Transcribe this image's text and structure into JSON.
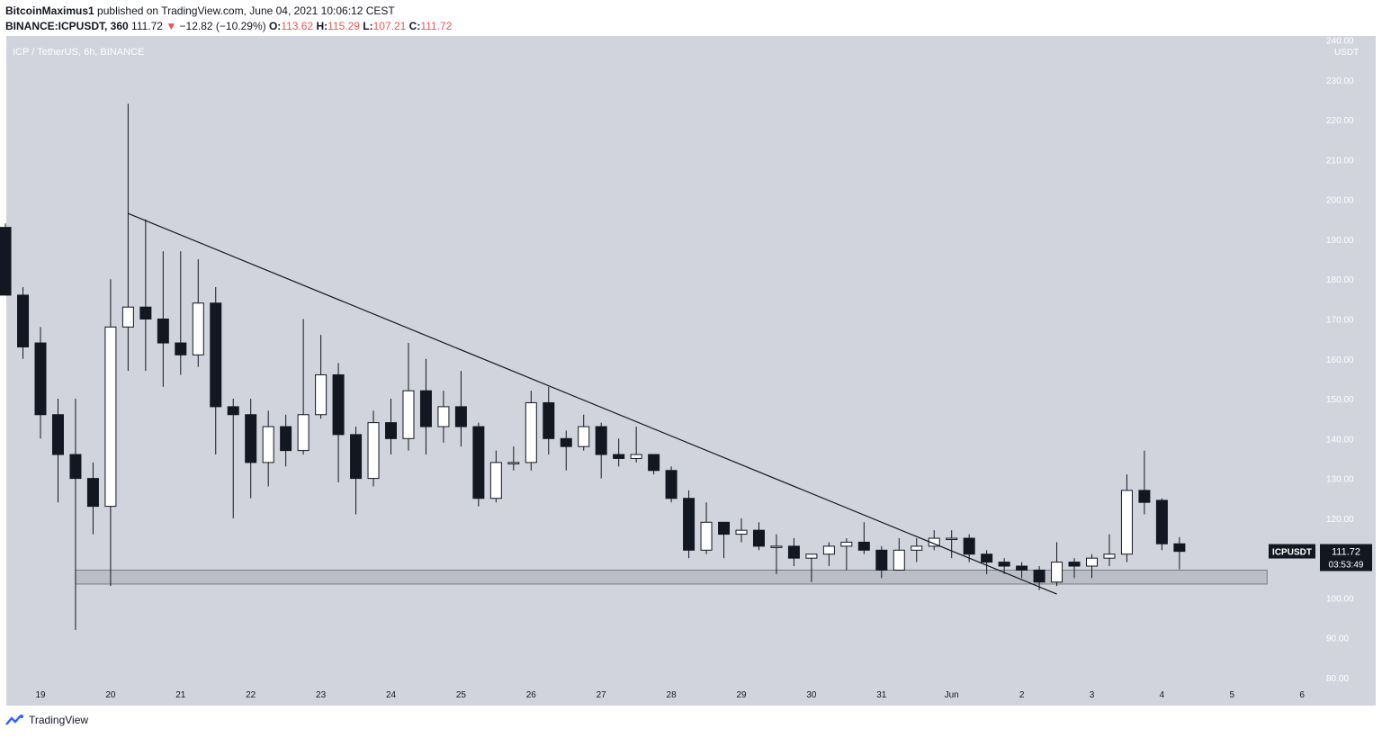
{
  "header": {
    "author": "BitcoinMaximus1",
    "published_text": "published on TradingView.com, June 04, 2021 10:06:12 CEST",
    "symbol_line": "BINANCE:ICPUSDT, 360",
    "last": "111.72",
    "change_arrow": "▼",
    "change": "−12.82 (−10.29%)",
    "o_label": "O:",
    "o_value": "113.62",
    "h_label": "H:",
    "h_value": "115.29",
    "l_label": "L:",
    "l_value": "107.21",
    "c_label": "C:",
    "c_value": "111.72"
  },
  "pane_title": "ICP / TetherUS, 6h, BINANCE",
  "currency_label": "USDT",
  "price_tag": {
    "symbol": "ICPUSDT",
    "price": "111.72",
    "countdown": "03:53:49"
  },
  "footer": {
    "brand": "TradingView"
  },
  "colors": {
    "background": "#d1d4dc",
    "bull_fill": "#ffffff",
    "bear_fill": "#131722",
    "wick": "#131722",
    "zone": "#b2b5be"
  },
  "chart_data": {
    "type": "candlestick",
    "title": "ICP / TetherUS, 6h, BINANCE",
    "y_unit": "USDT",
    "ylim": [
      78,
      242
    ],
    "y_ticks": [
      "80.00",
      "90.00",
      "100.00",
      "110.00",
      "120.00",
      "130.00",
      "140.00",
      "150.00",
      "160.00",
      "170.00",
      "180.00",
      "190.00",
      "200.00",
      "210.00",
      "220.00",
      "230.00",
      "240.00"
    ],
    "x_ticks": [
      "19",
      "20",
      "21",
      "22",
      "23",
      "24",
      "25",
      "26",
      "27",
      "28",
      "29",
      "30",
      "31",
      "Jun",
      "2",
      "3",
      "4",
      "5",
      "6"
    ],
    "x_tick_positions": [
      19,
      20,
      21,
      22,
      23,
      24,
      25,
      26,
      27,
      28,
      29,
      30,
      31,
      32,
      33,
      34,
      35,
      36,
      37
    ],
    "candles": [
      {
        "t": 18.5,
        "o": 193,
        "h": 194,
        "l": 176,
        "c": 176
      },
      {
        "t": 18.75,
        "o": 176,
        "h": 178,
        "l": 160,
        "c": 163
      },
      {
        "t": 19.0,
        "o": 164,
        "h": 168,
        "l": 140,
        "c": 146
      },
      {
        "t": 19.25,
        "o": 146,
        "h": 150,
        "l": 124,
        "c": 136
      },
      {
        "t": 19.5,
        "o": 136,
        "h": 150,
        "l": 92,
        "c": 130
      },
      {
        "t": 19.75,
        "o": 130,
        "h": 134,
        "l": 116,
        "c": 123
      },
      {
        "t": 20.0,
        "o": 123,
        "h": 180,
        "l": 103,
        "c": 168
      },
      {
        "t": 20.25,
        "o": 168,
        "h": 224,
        "l": 157,
        "c": 173
      },
      {
        "t": 20.5,
        "o": 173,
        "h": 195,
        "l": 157,
        "c": 170
      },
      {
        "t": 20.75,
        "o": 170,
        "h": 187,
        "l": 153,
        "c": 164
      },
      {
        "t": 21.0,
        "o": 164,
        "h": 187,
        "l": 156,
        "c": 161
      },
      {
        "t": 21.25,
        "o": 161,
        "h": 185,
        "l": 158,
        "c": 174
      },
      {
        "t": 21.5,
        "o": 174,
        "h": 178,
        "l": 136,
        "c": 148
      },
      {
        "t": 21.75,
        "o": 148,
        "h": 150,
        "l": 120,
        "c": 146
      },
      {
        "t": 22.0,
        "o": 146,
        "h": 150,
        "l": 125,
        "c": 134
      },
      {
        "t": 22.25,
        "o": 134,
        "h": 147,
        "l": 128,
        "c": 143
      },
      {
        "t": 22.5,
        "o": 143,
        "h": 146,
        "l": 133,
        "c": 137
      },
      {
        "t": 22.75,
        "o": 137,
        "h": 170,
        "l": 136,
        "c": 146
      },
      {
        "t": 23.0,
        "o": 146,
        "h": 166,
        "l": 145,
        "c": 156
      },
      {
        "t": 23.25,
        "o": 156,
        "h": 159,
        "l": 129,
        "c": 141
      },
      {
        "t": 23.5,
        "o": 141,
        "h": 143,
        "l": 121,
        "c": 130
      },
      {
        "t": 23.75,
        "o": 130,
        "h": 147,
        "l": 128,
        "c": 144
      },
      {
        "t": 24.0,
        "o": 144,
        "h": 150,
        "l": 136,
        "c": 140
      },
      {
        "t": 24.25,
        "o": 140,
        "h": 164,
        "l": 137,
        "c": 152
      },
      {
        "t": 24.5,
        "o": 152,
        "h": 160,
        "l": 136,
        "c": 143
      },
      {
        "t": 24.75,
        "o": 143,
        "h": 152,
        "l": 139,
        "c": 148
      },
      {
        "t": 25.0,
        "o": 148,
        "h": 157,
        "l": 138,
        "c": 143
      },
      {
        "t": 25.25,
        "o": 143,
        "h": 144,
        "l": 123,
        "c": 125
      },
      {
        "t": 25.5,
        "o": 125,
        "h": 137,
        "l": 124,
        "c": 134
      },
      {
        "t": 25.75,
        "o": 134,
        "h": 138,
        "l": 132,
        "c": 134
      },
      {
        "t": 26.0,
        "o": 134,
        "h": 152,
        "l": 132,
        "c": 149
      },
      {
        "t": 26.25,
        "o": 149,
        "h": 153,
        "l": 136,
        "c": 140
      },
      {
        "t": 26.5,
        "o": 140,
        "h": 142,
        "l": 132,
        "c": 138
      },
      {
        "t": 26.75,
        "o": 138,
        "h": 146,
        "l": 137,
        "c": 143
      },
      {
        "t": 27.0,
        "o": 143,
        "h": 144,
        "l": 130,
        "c": 136
      },
      {
        "t": 27.25,
        "o": 136,
        "h": 140,
        "l": 133,
        "c": 135
      },
      {
        "t": 27.5,
        "o": 135,
        "h": 143,
        "l": 134,
        "c": 136
      },
      {
        "t": 27.75,
        "o": 136,
        "h": 136,
        "l": 131,
        "c": 132
      },
      {
        "t": 28.0,
        "o": 132,
        "h": 133,
        "l": 124,
        "c": 125
      },
      {
        "t": 28.25,
        "o": 125,
        "h": 127,
        "l": 110,
        "c": 112
      },
      {
        "t": 28.5,
        "o": 112,
        "h": 124,
        "l": 111,
        "c": 119
      },
      {
        "t": 28.75,
        "o": 119,
        "h": 119,
        "l": 110,
        "c": 116
      },
      {
        "t": 29.0,
        "o": 116,
        "h": 120,
        "l": 114,
        "c": 117
      },
      {
        "t": 29.25,
        "o": 117,
        "h": 119,
        "l": 112,
        "c": 113
      },
      {
        "t": 29.5,
        "o": 113,
        "h": 116,
        "l": 106,
        "c": 113
      },
      {
        "t": 29.75,
        "o": 113,
        "h": 115,
        "l": 108,
        "c": 110
      },
      {
        "t": 30.0,
        "o": 110,
        "h": 111,
        "l": 104,
        "c": 111
      },
      {
        "t": 30.25,
        "o": 111,
        "h": 114,
        "l": 108,
        "c": 113
      },
      {
        "t": 30.5,
        "o": 113,
        "h": 115,
        "l": 107,
        "c": 114
      },
      {
        "t": 30.75,
        "o": 114,
        "h": 119,
        "l": 111,
        "c": 112
      },
      {
        "t": 31.0,
        "o": 112,
        "h": 113,
        "l": 105,
        "c": 107
      },
      {
        "t": 31.25,
        "o": 107,
        "h": 115,
        "l": 107,
        "c": 112
      },
      {
        "t": 31.5,
        "o": 112,
        "h": 115,
        "l": 109,
        "c": 113
      },
      {
        "t": 31.75,
        "o": 113,
        "h": 117,
        "l": 112,
        "c": 115
      },
      {
        "t": 32.0,
        "o": 115,
        "h": 117,
        "l": 110,
        "c": 115
      },
      {
        "t": 32.25,
        "o": 115,
        "h": 116,
        "l": 109,
        "c": 111
      },
      {
        "t": 32.5,
        "o": 111,
        "h": 112,
        "l": 106,
        "c": 109
      },
      {
        "t": 32.75,
        "o": 109,
        "h": 110,
        "l": 106,
        "c": 108
      },
      {
        "t": 33.0,
        "o": 108,
        "h": 109,
        "l": 105,
        "c": 107
      },
      {
        "t": 33.25,
        "o": 107,
        "h": 108,
        "l": 102,
        "c": 104
      },
      {
        "t": 33.5,
        "o": 104,
        "h": 114,
        "l": 103,
        "c": 109
      },
      {
        "t": 33.75,
        "o": 109,
        "h": 110,
        "l": 105,
        "c": 108
      },
      {
        "t": 34.0,
        "o": 108,
        "h": 111,
        "l": 105,
        "c": 110
      },
      {
        "t": 34.25,
        "o": 110,
        "h": 116,
        "l": 108,
        "c": 111
      },
      {
        "t": 34.5,
        "o": 111,
        "h": 131,
        "l": 109,
        "c": 127
      },
      {
        "t": 34.75,
        "o": 127,
        "h": 137,
        "l": 121,
        "c": 124
      },
      {
        "t": 35.0,
        "o": 124.5,
        "h": 125,
        "l": 112,
        "c": 113.6
      },
      {
        "t": 35.25,
        "o": 113.6,
        "h": 115.3,
        "l": 107.2,
        "c": 111.7
      }
    ],
    "trendline": {
      "from": {
        "t": 20.25,
        "price": 196.5
      },
      "to": {
        "t": 33.5,
        "price": 101
      }
    },
    "support_zone": {
      "from_t": 19.5,
      "to_t": 36.5,
      "low": 103.5,
      "high": 107
    }
  }
}
